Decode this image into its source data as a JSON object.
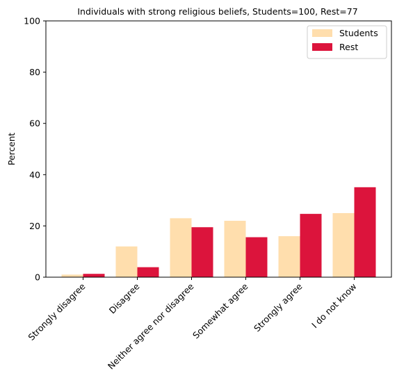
{
  "chart_data": {
    "type": "bar",
    "title": "Individuals with strong religious beliefs, Students=100, Rest=77",
    "xlabel": "",
    "ylabel": "Percent",
    "ylim": [
      0,
      100
    ],
    "yticks": [
      0,
      20,
      40,
      60,
      80,
      100
    ],
    "grid": false,
    "legend_position": "top-right",
    "categories": [
      "Strongly disagree",
      "Disagree",
      "Neither agree nor disagree",
      "Somewhat agree",
      "Strongly agree",
      "I do not know"
    ],
    "series": [
      {
        "name": "Students",
        "color": "#ffdead",
        "values": [
          1.0,
          12.0,
          23.0,
          22.0,
          16.0,
          25.0
        ]
      },
      {
        "name": "Rest",
        "color": "#dc143c",
        "values": [
          1.3,
          3.9,
          19.5,
          15.6,
          24.7,
          35.1
        ]
      }
    ]
  }
}
